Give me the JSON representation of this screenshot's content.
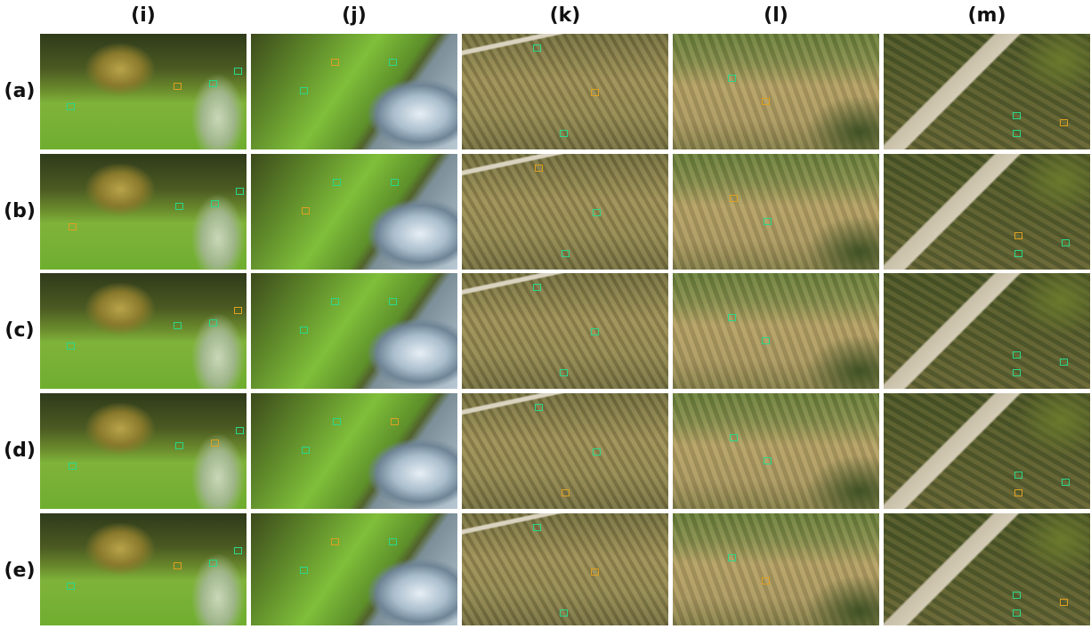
{
  "columns": [
    "(i)",
    "(j)",
    "(k)",
    "(l)",
    "(m)"
  ],
  "rows": [
    "(a)",
    "(b)",
    "(c)",
    "(d)",
    "(e)"
  ]
}
